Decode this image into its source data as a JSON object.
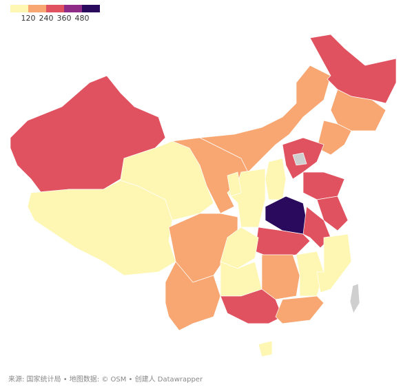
{
  "chart_data": {
    "type": "choropleth",
    "ticks": [
      120,
      240,
      360,
      480
    ],
    "colors": [
      "#fdf7b3",
      "#f8a773",
      "#e0525f",
      "#8d2b86",
      "#2a0a5c"
    ],
    "missing_color": "#cfcfcf",
    "values": [
      300,
      60,
      60,
      180,
      180,
      300,
      180,
      180,
      300,
      null,
      60,
      60,
      60,
      300,
      520,
      300,
      300,
      300,
      180,
      60,
      180,
      60,
      180,
      60,
      60,
      300,
      180,
      60,
      null
    ],
    "source": "来源: 国家统计局 • 地图数据: © OSM • 创建人 Datawrapper"
  }
}
